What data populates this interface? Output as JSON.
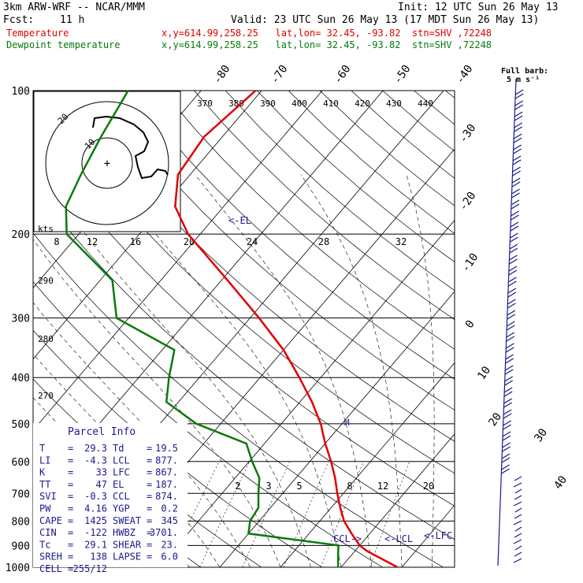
{
  "header": {
    "model": "3km ARW-WRF -- NCAR/MMM",
    "init": "Init: 12 UTC Sun 26 May 13",
    "fcst_label": "Fcst:",
    "fcst_value": "11 h",
    "valid": "Valid: 23 UTC Sun 26 May 13 (17 MDT Sun 26 May 13)",
    "temp_label": "Temperature",
    "dewp_label": "Dewpoint temperature",
    "loc_text": "x,y=614.99,258.25   lat,lon= 32.45, -93.82  stn=SHV ,72248"
  },
  "chart_data": {
    "type": "skew-t",
    "pressure_levels": [
      100,
      200,
      300,
      400,
      500,
      600,
      700,
      800,
      900,
      1000
    ],
    "temp_axis_labels": [
      "-80",
      "-70",
      "-60",
      "-50",
      "-40",
      "-30",
      "-20",
      "-10",
      "0",
      "10",
      "20",
      "30",
      "40"
    ],
    "theta_labels": [
      "370",
      "380",
      "390",
      "400",
      "410",
      "420",
      "430",
      "440"
    ],
    "mixing_ratio_labels": [
      "2",
      "3",
      "5",
      "8",
      "12",
      "20"
    ],
    "temperature_profile": [
      {
        "p": 1000,
        "t": 29.3
      },
      {
        "p": 950,
        "t": 24.5
      },
      {
        "p": 925,
        "t": 22.0
      },
      {
        "p": 900,
        "t": 20.0
      },
      {
        "p": 850,
        "t": 17.0
      },
      {
        "p": 800,
        "t": 14.0
      },
      {
        "p": 750,
        "t": 11.5
      },
      {
        "p": 700,
        "t": 9.0
      },
      {
        "p": 650,
        "t": 6.5
      },
      {
        "p": 600,
        "t": 3.5
      },
      {
        "p": 550,
        "t": 0.0
      },
      {
        "p": 500,
        "t": -3.5
      },
      {
        "p": 450,
        "t": -8.0
      },
      {
        "p": 400,
        "t": -13.5
      },
      {
        "p": 350,
        "t": -20.0
      },
      {
        "p": 300,
        "t": -28.5
      },
      {
        "p": 250,
        "t": -39.0
      },
      {
        "p": 200,
        "t": -52.0
      },
      {
        "p": 175,
        "t": -58.0
      },
      {
        "p": 150,
        "t": -62.0
      },
      {
        "p": 125,
        "t": -63.0
      },
      {
        "p": 100,
        "t": -61.0
      }
    ],
    "dewpoint_profile": [
      {
        "p": 1000,
        "t": 19.5
      },
      {
        "p": 950,
        "t": 18.0
      },
      {
        "p": 900,
        "t": 16.5
      },
      {
        "p": 850,
        "t": 0.0
      },
      {
        "p": 800,
        "t": -1.5
      },
      {
        "p": 750,
        "t": -2.0
      },
      {
        "p": 700,
        "t": -4.0
      },
      {
        "p": 650,
        "t": -6.0
      },
      {
        "p": 600,
        "t": -9.5
      },
      {
        "p": 550,
        "t": -13.0
      },
      {
        "p": 500,
        "t": -24.0
      },
      {
        "p": 450,
        "t": -32.0
      },
      {
        "p": 400,
        "t": -35.0
      },
      {
        "p": 350,
        "t": -38.0
      },
      {
        "p": 300,
        "t": -52.0
      },
      {
        "p": 250,
        "t": -58.0
      },
      {
        "p": 200,
        "t": -72.0
      },
      {
        "p": 175,
        "t": -76.0
      },
      {
        "p": 150,
        "t": -78.0
      },
      {
        "p": 125,
        "t": -80.0
      },
      {
        "p": 100,
        "t": -82.0
      }
    ],
    "annotations": [
      "<-EL",
      "CCL->",
      "<-LCL",
      "<-LFC"
    ],
    "hodograph": {
      "ring_labels": [
        "10",
        "20"
      ],
      "units": "kts",
      "speed_ticks": [
        "8",
        "12",
        "16",
        "20",
        "24",
        "28",
        "32"
      ],
      "center_label": "+"
    },
    "wind_note": {
      "title": "Full barb:",
      "value": "5 m s⁻¹"
    },
    "parcel_info": {
      "title": "Parcel Info",
      "rows": [
        [
          "T",
          "=",
          "29.3",
          "Td",
          "=",
          "19.5"
        ],
        [
          "LI",
          "=",
          "-4.3",
          "LCL",
          "=",
          "877."
        ],
        [
          "K",
          "=",
          "33",
          "LFC",
          "=",
          "867."
        ],
        [
          "TT",
          "=",
          "47",
          "EL",
          "=",
          "187."
        ],
        [
          "SVI",
          "=",
          "-0.3",
          "CCL",
          "=",
          "874."
        ],
        [
          "PW",
          "=",
          "4.16",
          "YGP",
          "=",
          "0.2"
        ],
        [
          "CAPE",
          "=",
          "1425",
          "SWEAT",
          "=",
          "345"
        ],
        [
          "CIN",
          "=",
          "-122",
          "HWBZ",
          "=",
          "3701."
        ],
        [
          "Tc",
          "=",
          "29.1",
          "SHEAR",
          "=",
          "23."
        ],
        [
          "SREH",
          "=",
          "138",
          "LAPSE",
          "=",
          "6.0"
        ],
        [
          "CELL",
          "=",
          "255/12",
          "",
          "",
          ""
        ]
      ]
    },
    "left_theta_labels": [
      "290",
      "280",
      "270"
    ],
    "marker_label": "M"
  }
}
